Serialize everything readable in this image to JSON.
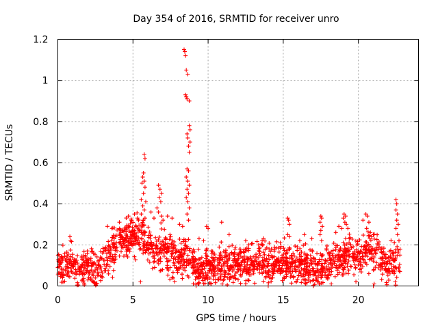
{
  "chart_data": {
    "type": "scatter",
    "title": "Day 354 of 2016, SRMTID for receiver unro",
    "xlabel": "GPS time / hours",
    "ylabel": "SRMTID / TECUs",
    "xlim": [
      0,
      24
    ],
    "ylim": [
      0,
      1.2
    ],
    "xticks": [
      0,
      5,
      10,
      15,
      20
    ],
    "xtick_labels": [
      "0",
      "5",
      "10",
      "15",
      "20"
    ],
    "yticks": [
      0,
      0.2,
      0.4,
      0.6,
      0.8,
      1.0,
      1.2
    ],
    "ytick_labels": [
      "0",
      "0.2",
      "0.4",
      "0.6",
      "0.8",
      "1",
      "1.2"
    ],
    "grid": true,
    "marker": "+",
    "series": [
      {
        "name": "SRMTID",
        "color": "#ff0000",
        "baseline_profile": [
          [
            0.0,
            0.1
          ],
          [
            1.0,
            0.11
          ],
          [
            2.0,
            0.08
          ],
          [
            2.5,
            0.07
          ],
          [
            3.0,
            0.1
          ],
          [
            3.5,
            0.16
          ],
          [
            4.0,
            0.2
          ],
          [
            4.5,
            0.22
          ],
          [
            5.0,
            0.24
          ],
          [
            5.5,
            0.25
          ],
          [
            6.0,
            0.2
          ],
          [
            6.5,
            0.17
          ],
          [
            7.0,
            0.18
          ],
          [
            7.5,
            0.15
          ],
          [
            8.0,
            0.13
          ],
          [
            8.5,
            0.15
          ],
          [
            9.0,
            0.1
          ],
          [
            9.5,
            0.08
          ],
          [
            10.0,
            0.09
          ],
          [
            11.0,
            0.1
          ],
          [
            12.0,
            0.11
          ],
          [
            13.0,
            0.12
          ],
          [
            14.0,
            0.11
          ],
          [
            15.0,
            0.12
          ],
          [
            16.0,
            0.1
          ],
          [
            17.0,
            0.09
          ],
          [
            17.5,
            0.08
          ],
          [
            18.0,
            0.1
          ],
          [
            19.0,
            0.14
          ],
          [
            19.5,
            0.15
          ],
          [
            20.0,
            0.12
          ],
          [
            20.5,
            0.16
          ],
          [
            21.0,
            0.18
          ],
          [
            21.5,
            0.13
          ],
          [
            22.0,
            0.1
          ],
          [
            22.5,
            0.12
          ],
          [
            22.8,
            0.12
          ]
        ],
        "x_range": [
          0.0,
          22.8
        ],
        "points": [
          [
            8.4,
            1.15
          ],
          [
            8.45,
            1.14
          ],
          [
            8.5,
            1.12
          ],
          [
            8.55,
            1.05
          ],
          [
            8.65,
            1.03
          ],
          [
            8.5,
            0.93
          ],
          [
            8.55,
            0.92
          ],
          [
            8.6,
            0.91
          ],
          [
            8.75,
            0.9
          ],
          [
            8.75,
            0.78
          ],
          [
            8.8,
            0.76
          ],
          [
            8.6,
            0.74
          ],
          [
            8.65,
            0.72
          ],
          [
            8.8,
            0.7
          ],
          [
            8.7,
            0.68
          ],
          [
            8.75,
            0.65
          ],
          [
            8.6,
            0.57
          ],
          [
            8.7,
            0.56
          ],
          [
            8.55,
            0.53
          ],
          [
            8.65,
            0.51
          ],
          [
            8.75,
            0.49
          ],
          [
            8.6,
            0.47
          ],
          [
            8.7,
            0.45
          ],
          [
            8.55,
            0.43
          ],
          [
            8.65,
            0.41
          ],
          [
            8.75,
            0.38
          ],
          [
            8.6,
            0.35
          ],
          [
            8.7,
            0.32
          ],
          [
            5.75,
            0.64
          ],
          [
            5.8,
            0.62
          ],
          [
            5.7,
            0.55
          ],
          [
            5.65,
            0.53
          ],
          [
            5.75,
            0.51
          ],
          [
            5.6,
            0.5
          ],
          [
            5.8,
            0.48
          ],
          [
            5.7,
            0.45
          ],
          [
            5.55,
            0.42
          ],
          [
            5.85,
            0.41
          ],
          [
            5.65,
            0.39
          ],
          [
            5.75,
            0.37
          ],
          [
            5.55,
            0.35
          ],
          [
            5.8,
            0.33
          ],
          [
            6.7,
            0.49
          ],
          [
            6.8,
            0.47
          ],
          [
            6.9,
            0.45
          ],
          [
            6.75,
            0.43
          ],
          [
            6.85,
            0.41
          ],
          [
            6.6,
            0.38
          ],
          [
            6.7,
            0.36
          ],
          [
            6.9,
            0.34
          ],
          [
            7.0,
            0.32
          ],
          [
            3.3,
            0.29
          ],
          [
            3.6,
            0.28
          ],
          [
            4.1,
            0.31
          ],
          [
            4.3,
            0.27
          ],
          [
            4.7,
            0.34
          ],
          [
            4.9,
            0.32
          ],
          [
            5.1,
            0.35
          ],
          [
            5.3,
            0.33
          ],
          [
            6.2,
            0.36
          ],
          [
            6.4,
            0.33
          ],
          [
            7.3,
            0.34
          ],
          [
            7.6,
            0.33
          ],
          [
            8.1,
            0.3
          ],
          [
            8.3,
            0.29
          ],
          [
            0.8,
            0.24
          ],
          [
            0.85,
            0.22
          ],
          [
            2.3,
            0.17
          ],
          [
            9.4,
            0.23
          ],
          [
            9.7,
            0.22
          ],
          [
            9.9,
            0.29
          ],
          [
            10.0,
            0.28
          ],
          [
            10.9,
            0.31
          ],
          [
            11.4,
            0.25
          ],
          [
            12.5,
            0.22
          ],
          [
            12.7,
            0.2
          ],
          [
            13.6,
            0.22
          ],
          [
            14.8,
            0.21
          ],
          [
            15.3,
            0.33
          ],
          [
            15.35,
            0.32
          ],
          [
            15.4,
            0.3
          ],
          [
            15.3,
            0.25
          ],
          [
            15.4,
            0.24
          ],
          [
            16.1,
            0.22
          ],
          [
            16.4,
            0.25
          ],
          [
            16.9,
            0.23
          ],
          [
            17.5,
            0.34
          ],
          [
            17.55,
            0.33
          ],
          [
            17.45,
            0.31
          ],
          [
            17.6,
            0.29
          ],
          [
            17.5,
            0.27
          ],
          [
            17.45,
            0.25
          ],
          [
            17.55,
            0.22
          ],
          [
            18.5,
            0.26
          ],
          [
            18.7,
            0.29
          ],
          [
            18.9,
            0.28
          ],
          [
            19.0,
            0.33
          ],
          [
            19.05,
            0.35
          ],
          [
            19.15,
            0.34
          ],
          [
            19.1,
            0.31
          ],
          [
            19.2,
            0.3
          ],
          [
            19.3,
            0.28
          ],
          [
            20.3,
            0.32
          ],
          [
            20.5,
            0.35
          ],
          [
            20.6,
            0.34
          ],
          [
            20.7,
            0.31
          ],
          [
            20.55,
            0.28
          ],
          [
            20.8,
            0.26
          ],
          [
            21.0,
            0.25
          ],
          [
            22.5,
            0.42
          ],
          [
            22.55,
            0.4
          ],
          [
            22.5,
            0.37
          ],
          [
            22.6,
            0.35
          ],
          [
            22.55,
            0.32
          ],
          [
            22.65,
            0.3
          ],
          [
            22.5,
            0.28
          ],
          [
            22.6,
            0.25
          ],
          [
            22.7,
            0.22
          ],
          [
            21.0,
            0.0
          ],
          [
            21.05,
            0.01
          ],
          [
            17.0,
            0.0
          ],
          [
            16.5,
            0.01
          ],
          [
            9.2,
            0.0
          ],
          [
            10.2,
            0.01
          ],
          [
            14.0,
            0.0
          ],
          [
            18.2,
            0.01
          ],
          [
            5.5,
            0.02
          ]
        ]
      }
    ]
  }
}
